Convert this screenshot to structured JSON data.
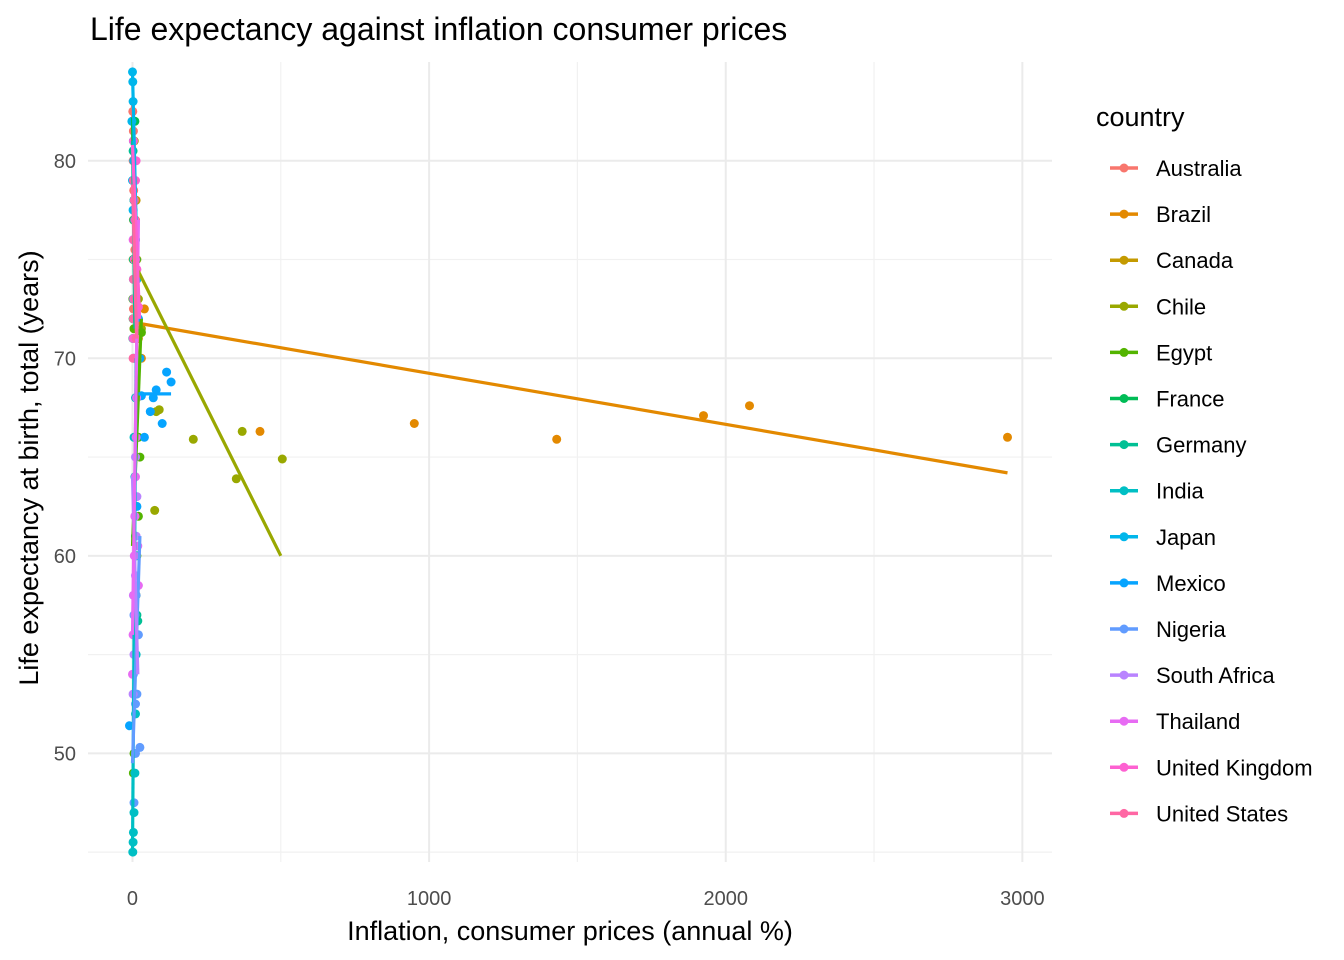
{
  "chart_data": {
    "type": "scatter",
    "title": "Life expectancy against inflation consumer prices",
    "xlabel": "Inflation, consumer prices (annual %)",
    "ylabel": "Life expectancy at birth, total (years)",
    "xlim": [
      -150,
      3100
    ],
    "ylim": [
      44.5,
      85
    ],
    "x_ticks": [
      0,
      1000,
      2000,
      3000
    ],
    "x_tick_labels": [
      "0",
      "1000",
      "2000",
      "3000"
    ],
    "y_ticks": [
      50,
      60,
      70,
      80
    ],
    "y_tick_labels": [
      "50",
      "60",
      "70",
      "80"
    ],
    "grid": true,
    "legend_title": "country",
    "legend_position": "right",
    "series": [
      {
        "name": "Australia",
        "color": "#F8766D",
        "points": [
          [
            2,
            71
          ],
          [
            3,
            72.5
          ],
          [
            5,
            74
          ],
          [
            8,
            75.5
          ],
          [
            10,
            77
          ],
          [
            4,
            78.5
          ],
          [
            2,
            80
          ],
          [
            3,
            81.5
          ],
          [
            1,
            82.5
          ],
          [
            6,
            76
          ],
          [
            12,
            73
          ]
        ],
        "fit": [
          [
            0,
            82.8
          ],
          [
            15,
            70.2
          ]
        ]
      },
      {
        "name": "Brazil",
        "color": "#E38900",
        "points": [
          [
            5,
            71.5
          ],
          [
            10,
            72
          ],
          [
            20,
            71
          ],
          [
            30,
            70
          ],
          [
            40,
            72.5
          ],
          [
            430,
            66.3
          ],
          [
            950,
            66.7
          ],
          [
            1430,
            65.9
          ],
          [
            1925,
            67.1
          ],
          [
            2080,
            67.6
          ],
          [
            2950,
            66
          ]
        ],
        "fit": [
          [
            10,
            71.8
          ],
          [
            2950,
            64.2
          ]
        ]
      },
      {
        "name": "Canada",
        "color": "#C49A00",
        "points": [
          [
            1,
            73
          ],
          [
            2,
            75
          ],
          [
            3,
            77
          ],
          [
            4,
            79
          ],
          [
            5,
            80
          ],
          [
            6,
            81
          ],
          [
            8,
            76
          ],
          [
            10,
            74
          ],
          [
            12,
            78
          ]
        ],
        "fit": [
          [
            0,
            81.8
          ],
          [
            14,
            72.5
          ]
        ]
      },
      {
        "name": "Chile",
        "color": "#99A800",
        "points": [
          [
            15,
            75
          ],
          [
            20,
            73
          ],
          [
            30,
            71.5
          ],
          [
            80,
            67.3
          ],
          [
            90,
            67.4
          ],
          [
            75,
            62.3
          ],
          [
            205,
            65.9
          ],
          [
            350,
            63.9
          ],
          [
            370,
            66.3
          ],
          [
            505,
            64.9
          ],
          [
            5,
            78
          ],
          [
            8,
            77
          ],
          [
            10,
            76
          ]
        ],
        "fit": [
          [
            0,
            75
          ],
          [
            500,
            60
          ]
        ]
      },
      {
        "name": "Egypt",
        "color": "#53B400",
        "points": [
          [
            5,
            50
          ],
          [
            8,
            53
          ],
          [
            10,
            56
          ],
          [
            12,
            58
          ],
          [
            15,
            60
          ],
          [
            20,
            62
          ],
          [
            25,
            65
          ],
          [
            15,
            68
          ],
          [
            10,
            70
          ],
          [
            5,
            71.5
          ],
          [
            3,
            49
          ],
          [
            30,
            71.3
          ],
          [
            20,
            66
          ]
        ],
        "fit": [
          [
            0,
            60.5
          ],
          [
            30,
            72
          ]
        ]
      },
      {
        "name": "France",
        "color": "#00BC56",
        "points": [
          [
            2,
            72
          ],
          [
            3,
            74
          ],
          [
            4,
            76
          ],
          [
            5,
            78
          ],
          [
            6,
            80
          ],
          [
            8,
            82
          ],
          [
            10,
            73
          ],
          [
            12,
            75
          ]
        ],
        "fit": [
          [
            0,
            82.2
          ],
          [
            14,
            72
          ]
        ]
      },
      {
        "name": "Germany",
        "color": "#00C094",
        "points": [
          [
            1,
            71
          ],
          [
            2,
            73
          ],
          [
            3,
            75
          ],
          [
            4,
            77
          ],
          [
            5,
            79
          ],
          [
            3,
            81
          ],
          [
            2,
            80.5
          ],
          [
            15,
            57
          ],
          [
            18,
            56.7
          ]
        ],
        "fit": [
          [
            0,
            81
          ],
          [
            8,
            71.5
          ]
        ]
      },
      {
        "name": "India",
        "color": "#00BFC4",
        "points": [
          [
            1,
            45
          ],
          [
            2,
            45.5
          ],
          [
            3,
            46
          ],
          [
            5,
            47
          ],
          [
            8,
            49
          ],
          [
            10,
            52
          ],
          [
            12,
            55
          ],
          [
            6,
            58
          ],
          [
            10,
            61
          ],
          [
            8,
            64
          ],
          [
            5,
            66
          ],
          [
            10,
            68
          ],
          [
            4,
            70
          ]
        ],
        "fit": [
          [
            0,
            45
          ],
          [
            12,
            70
          ]
        ]
      },
      {
        "name": "Japan",
        "color": "#00B6EB",
        "points": [
          [
            0,
            84.5
          ],
          [
            1,
            84
          ],
          [
            2,
            83
          ],
          [
            -2,
            82
          ],
          [
            3,
            81
          ],
          [
            4,
            80
          ],
          [
            5,
            78
          ],
          [
            10,
            76
          ],
          [
            15,
            74
          ],
          [
            20,
            72
          ],
          [
            0,
            79
          ],
          [
            2,
            77.5
          ]
        ],
        "fit": [
          [
            0,
            84.5
          ],
          [
            20,
            72
          ]
        ]
      },
      {
        "name": "Mexico",
        "color": "#06A4FF",
        "points": [
          [
            20,
            72
          ],
          [
            25,
            70
          ],
          [
            30,
            68.1
          ],
          [
            40,
            66
          ],
          [
            60,
            67.3
          ],
          [
            80,
            68.4
          ],
          [
            100,
            66.7
          ],
          [
            115,
            69.3
          ],
          [
            130,
            68.8
          ],
          [
            70,
            68
          ],
          [
            -10,
            51.4
          ],
          [
            15,
            62.5
          ],
          [
            10,
            60
          ]
        ],
        "fit": [
          [
            20,
            68.2
          ],
          [
            130,
            68.2
          ]
        ]
      },
      {
        "name": "Nigeria",
        "color": "#619CFF",
        "points": [
          [
            5,
            47.5
          ],
          [
            10,
            50
          ],
          [
            15,
            53
          ],
          [
            20,
            56
          ],
          [
            12,
            58
          ],
          [
            8,
            60
          ],
          [
            5,
            57
          ],
          [
            3,
            54
          ],
          [
            10,
            52.5
          ],
          [
            25,
            50.3
          ]
        ],
        "fit": [
          [
            0,
            49.5
          ],
          [
            25,
            61
          ]
        ]
      },
      {
        "name": "South Africa",
        "color": "#B983FF",
        "points": [
          [
            2,
            53
          ],
          [
            5,
            55
          ],
          [
            8,
            57
          ],
          [
            10,
            59
          ],
          [
            12,
            61
          ],
          [
            15,
            63
          ],
          [
            10,
            65
          ],
          [
            8,
            62
          ],
          [
            5,
            56
          ],
          [
            3,
            58
          ]
        ],
        "fit": [
          [
            0,
            64
          ],
          [
            18,
            54
          ]
        ]
      },
      {
        "name": "Thailand",
        "color": "#E76BF3",
        "points": [
          [
            0,
            54
          ],
          [
            2,
            56
          ],
          [
            4,
            58
          ],
          [
            6,
            60
          ],
          [
            8,
            62
          ],
          [
            10,
            64
          ],
          [
            12,
            66
          ],
          [
            14,
            68
          ],
          [
            16,
            70
          ],
          [
            5,
            72
          ],
          [
            3,
            74
          ],
          [
            2,
            76
          ],
          [
            18,
            60.5
          ],
          [
            20,
            58.5
          ]
        ],
        "fit": [
          [
            0,
            56
          ],
          [
            20,
            77
          ]
        ]
      },
      {
        "name": "United Kingdom",
        "color": "#FD61D1",
        "points": [
          [
            2,
            71
          ],
          [
            4,
            73
          ],
          [
            6,
            75
          ],
          [
            8,
            77
          ],
          [
            10,
            79
          ],
          [
            12,
            80
          ],
          [
            3,
            81
          ],
          [
            20,
            72.6
          ],
          [
            15,
            74.5
          ]
        ],
        "fit": [
          [
            0,
            80.8
          ],
          [
            24,
            72
          ]
        ]
      },
      {
        "name": "United States",
        "color": "#FF67A4",
        "points": [
          [
            2,
            70
          ],
          [
            3,
            72
          ],
          [
            4,
            74
          ],
          [
            5,
            76
          ],
          [
            6,
            78
          ],
          [
            3,
            79
          ],
          [
            8,
            73
          ],
          [
            10,
            75
          ],
          [
            12,
            71
          ]
        ],
        "fit": [
          [
            0,
            78.8
          ],
          [
            14,
            71
          ]
        ]
      }
    ]
  }
}
